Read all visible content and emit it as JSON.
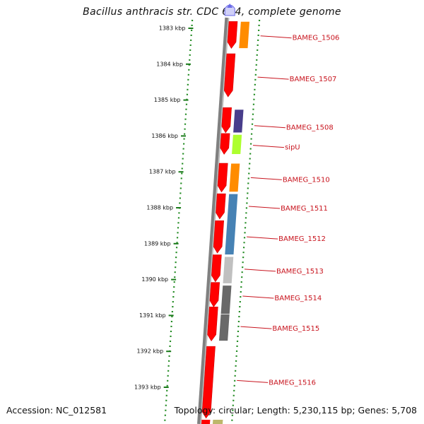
{
  "title": "Bacillus anthracis str. CDC 684, complete genome",
  "accession": "Accession: NC_012581",
  "topology": "Topology: circular; Length: 5,230,115 bp; Genes: 5,708",
  "colors": {
    "forward": "#ff0000",
    "backbone": "#808080",
    "dots": "#228b22",
    "label": "#c8141e",
    "marker": "#6a6ae8"
  },
  "position_ticks": [
    {
      "kbp": 1383,
      "label": "1383 kbp"
    },
    {
      "kbp": 1384,
      "label": "1384 kbp"
    },
    {
      "kbp": 1385,
      "label": "1385 kbp"
    },
    {
      "kbp": 1386,
      "label": "1386 kbp"
    },
    {
      "kbp": 1387,
      "label": "1387 kbp"
    },
    {
      "kbp": 1388,
      "label": "1388 kbp"
    },
    {
      "kbp": 1389,
      "label": "1389 kbp"
    },
    {
      "kbp": 1390,
      "label": "1390 kbp"
    },
    {
      "kbp": 1391,
      "label": "1391 kbp"
    },
    {
      "kbp": 1392,
      "label": "1392 kbp"
    },
    {
      "kbp": 1393,
      "label": "1393 kbp"
    }
  ],
  "forward_genes": [
    {
      "start": 1382.85,
      "end": 1383.6
    },
    {
      "start": 1383.75,
      "end": 1384.95
    },
    {
      "start": 1385.25,
      "end": 1385.95
    },
    {
      "start": 1385.97,
      "end": 1386.55
    },
    {
      "start": 1386.8,
      "end": 1387.6
    },
    {
      "start": 1387.65,
      "end": 1388.35
    },
    {
      "start": 1388.4,
      "end": 1389.3
    },
    {
      "start": 1389.35,
      "end": 1390.1
    },
    {
      "start": 1390.12,
      "end": 1390.8
    },
    {
      "start": 1390.8,
      "end": 1391.75
    },
    {
      "start": 1391.9,
      "end": 1393.9
    }
  ],
  "cog_blocks": [
    {
      "start": 1382.85,
      "end": 1383.6,
      "color": "#ff8c00"
    },
    {
      "start": 1385.3,
      "end": 1385.95,
      "color": "#483d8b"
    },
    {
      "start": 1386.0,
      "end": 1386.55,
      "color": "#adff2f"
    },
    {
      "start": 1386.8,
      "end": 1387.6,
      "color": "#ff8c00"
    },
    {
      "start": 1387.65,
      "end": 1389.35,
      "color": "#4682b4"
    },
    {
      "start": 1389.4,
      "end": 1390.15,
      "color": "#c0c0c0"
    },
    {
      "start": 1390.2,
      "end": 1391.0,
      "color": "#696969"
    },
    {
      "start": 1391.0,
      "end": 1391.75,
      "color": "#696969"
    }
  ],
  "gene_labels": [
    {
      "name": "BAMEG_1506",
      "kbp": 1383.25
    },
    {
      "name": "BAMEG_1507",
      "kbp": 1384.4
    },
    {
      "name": "BAMEG_1508",
      "kbp": 1385.75
    },
    {
      "name": "sipU",
      "kbp": 1386.3
    },
    {
      "name": "BAMEG_1510",
      "kbp": 1387.2
    },
    {
      "name": "BAMEG_1511",
      "kbp": 1388.0
    },
    {
      "name": "BAMEG_1512",
      "kbp": 1388.85
    },
    {
      "name": "BAMEG_1513",
      "kbp": 1389.75
    },
    {
      "name": "BAMEG_1514",
      "kbp": 1390.5
    },
    {
      "name": "BAMEG_1515",
      "kbp": 1391.35
    },
    {
      "name": "BAMEG_1516",
      "kbp": 1392.85
    }
  ]
}
